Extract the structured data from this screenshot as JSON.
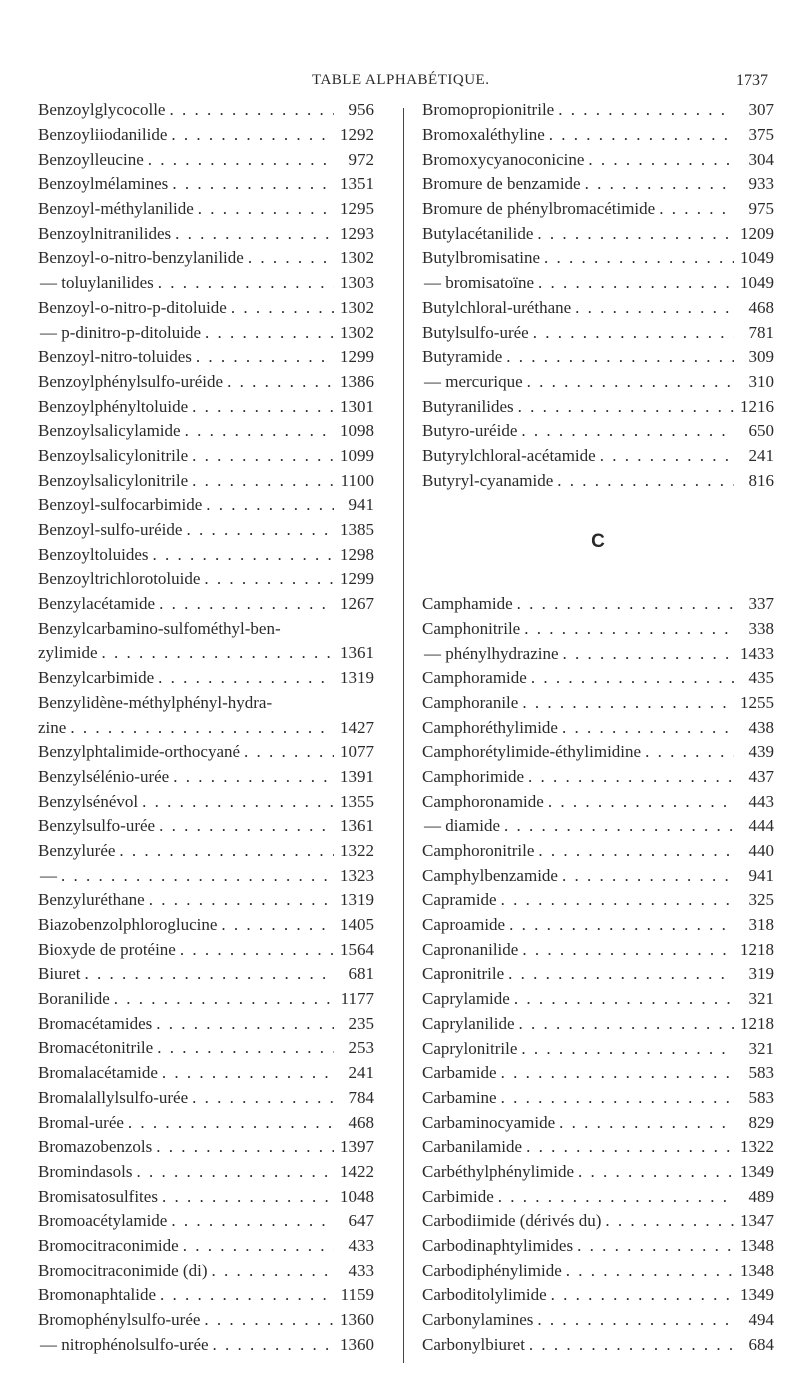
{
  "header": {
    "title": "TABLE ALPHABÉTIQUE.",
    "page_number": "1737"
  },
  "left": [
    {
      "name": "Benzoylglycocolle",
      "page": "956"
    },
    {
      "name": "Benzoyliiodanilide",
      "page": "1292"
    },
    {
      "name": "Benzoylleucine",
      "page": "972"
    },
    {
      "name": "Benzoylmélamines",
      "page": "1351"
    },
    {
      "name": "Benzoyl-méthylanilide",
      "page": "1295"
    },
    {
      "name": "Benzoylnitranilides",
      "page": "1293"
    },
    {
      "name": "Benzoyl-o-nitro-benzylanilide",
      "page": "1302"
    },
    {
      "name": "— toluylanilides",
      "page": "1303"
    },
    {
      "name": "Benzoyl-o-nitro-p-ditoluide",
      "page": "1302"
    },
    {
      "name": "— p-dinitro-p-ditoluide",
      "page": "1302"
    },
    {
      "name": "Benzoyl-nitro-toluides",
      "page": "1299"
    },
    {
      "name": "Benzoylphénylsulfo-uréide",
      "page": "1386"
    },
    {
      "name": "Benzoylphényltoluide",
      "page": "1301"
    },
    {
      "name": "Benzoylsalicylamide",
      "page": "1098"
    },
    {
      "name": "Benzoylsalicylonitrile",
      "page": "1099"
    },
    {
      "name": "Benzoylsalicylonitrile",
      "page": "1100"
    },
    {
      "name": "Benzoyl-sulfocarbimide",
      "page": "941"
    },
    {
      "name": "Benzoyl-sulfo-uréide",
      "page": "1385"
    },
    {
      "name": "Benzoyltoluides",
      "page": "1298"
    },
    {
      "name": "Benzoyltrichlorotoluide",
      "page": "1299"
    },
    {
      "name": "Benzylacétamide",
      "page": "1267"
    },
    {
      "name": "Benzylcarbamino-sulfométhyl-ben-",
      "page": ""
    },
    {
      "name": "zylimide",
      "page": "1361"
    },
    {
      "name": "Benzylcarbimide",
      "page": "1319"
    },
    {
      "name": "Benzylidène-méthylphényl-hydra-",
      "page": ""
    },
    {
      "name": "zine",
      "page": "1427"
    },
    {
      "name": "Benzylphtalimide-orthocyané",
      "page": "1077"
    },
    {
      "name": "Benzylsélénio-urée",
      "page": "1391"
    },
    {
      "name": "Benzylsénévol",
      "page": "1355"
    },
    {
      "name": "Benzylsulfo-urée",
      "page": "1361"
    },
    {
      "name": "Benzylurée",
      "page": "1322"
    },
    {
      "name": "—",
      "page": "1323"
    },
    {
      "name": "Benzyluréthane",
      "page": "1319"
    },
    {
      "name": "Biazobenzolphloroglucine",
      "page": "1405"
    },
    {
      "name": "Bioxyde de protéine",
      "page": "1564"
    },
    {
      "name": "Biuret",
      "page": "681"
    },
    {
      "name": "Boranilide",
      "page": "1177"
    },
    {
      "name": "Bromacétamides",
      "page": "235"
    },
    {
      "name": "Bromacétonitrile",
      "page": "253"
    },
    {
      "name": "Bromalacétamide",
      "page": "241"
    },
    {
      "name": "Bromalallylsulfo-urée",
      "page": "784"
    },
    {
      "name": "Bromal-urée",
      "page": "468"
    },
    {
      "name": "Bromazobenzols",
      "page": "1397"
    },
    {
      "name": "Bromindasols",
      "page": "1422"
    },
    {
      "name": "Bromisatosulfites",
      "page": "1048"
    },
    {
      "name": "Bromoacétylamide",
      "page": "647"
    },
    {
      "name": "Bromocitraconimide",
      "page": "433"
    },
    {
      "name": "Bromocitraconimide (di)",
      "page": "433"
    },
    {
      "name": "Bromonaphtalide",
      "page": "1159"
    },
    {
      "name": "Bromophénylsulfo-urée",
      "page": "1360"
    },
    {
      "name": "— nitrophénolsulfo-urée",
      "page": "1360"
    }
  ],
  "right_top": [
    {
      "name": "Bromopropionitrile",
      "page": "307"
    },
    {
      "name": "Bromoxaléthyline",
      "page": "375"
    },
    {
      "name": "Bromoxycyanoconicine",
      "page": "304"
    },
    {
      "name": "Bromure de benzamide",
      "page": "933"
    },
    {
      "name": "Bromure de phénylbromacétimide",
      "page": "975"
    },
    {
      "name": "Butylacétanilide",
      "page": "1209"
    },
    {
      "name": "Butylbromisatine",
      "page": "1049"
    },
    {
      "name": "— bromisatoïne",
      "page": "1049"
    },
    {
      "name": "Butylchloral-uréthane",
      "page": "468"
    },
    {
      "name": "Butylsulfo-urée",
      "page": "781"
    },
    {
      "name": "Butyramide",
      "page": "309"
    },
    {
      "name": "— mercurique",
      "page": "310"
    },
    {
      "name": "Butyranilides",
      "page": "1216"
    },
    {
      "name": "Butyro-uréide",
      "page": "650"
    },
    {
      "name": "Butyrylchloral-acétamide",
      "page": "241"
    },
    {
      "name": "Butyryl-cyanamide",
      "page": "816"
    }
  ],
  "section_letter": "C",
  "right_bottom": [
    {
      "name": "Camphamide",
      "page": "337"
    },
    {
      "name": "Camphonitrile",
      "page": "338"
    },
    {
      "name": "— phénylhydrazine",
      "page": "1433"
    },
    {
      "name": "Camphoramide",
      "page": "435"
    },
    {
      "name": "Camphoranile",
      "page": "1255"
    },
    {
      "name": "Camphoréthylimide",
      "page": "438"
    },
    {
      "name": "Camphorétylimide-éthylimidine",
      "page": "439"
    },
    {
      "name": "Camphorimide",
      "page": "437"
    },
    {
      "name": "Camphoronamide",
      "page": "443"
    },
    {
      "name": "— diamide",
      "page": "444"
    },
    {
      "name": "Camphoronitrile",
      "page": "440"
    },
    {
      "name": "Camphylbenzamide",
      "page": "941"
    },
    {
      "name": "Capramide",
      "page": "325"
    },
    {
      "name": "Caproamide",
      "page": "318"
    },
    {
      "name": "Capronanilide",
      "page": "1218"
    },
    {
      "name": "Capronitrile",
      "page": "319"
    },
    {
      "name": "Caprylamide",
      "page": "321"
    },
    {
      "name": "Caprylanilide",
      "page": "1218"
    },
    {
      "name": "Caprylonitrile",
      "page": "321"
    },
    {
      "name": "Carbamide",
      "page": "583"
    },
    {
      "name": "Carbamine",
      "page": "583"
    },
    {
      "name": "Carbaminocyamide",
      "page": "829"
    },
    {
      "name": "Carbanilamide",
      "page": "1322"
    },
    {
      "name": "Carbéthylphénylimide",
      "page": "1349"
    },
    {
      "name": "Carbimide",
      "page": "489"
    },
    {
      "name": "Carbodiimide (dérivés du)",
      "page": "1347"
    },
    {
      "name": "Carbodinaphtylimides",
      "page": "1348"
    },
    {
      "name": "Carbodiphénylimide",
      "page": "1348"
    },
    {
      "name": "Carboditolylimide",
      "page": "1349"
    },
    {
      "name": "Carbonylamines",
      "page": "494"
    },
    {
      "name": "Carbonylbiuret",
      "page": "684"
    }
  ]
}
